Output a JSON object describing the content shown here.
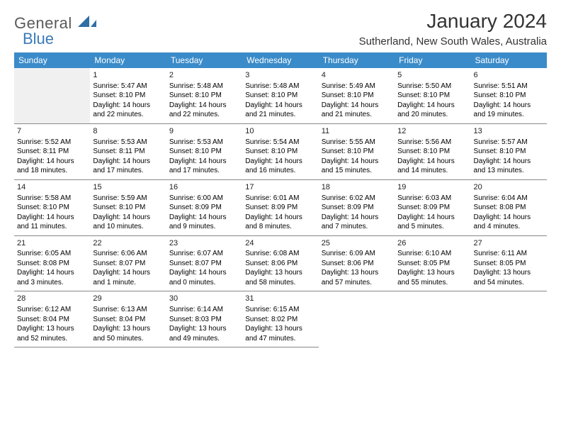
{
  "logo": {
    "word1": "General",
    "word2": "Blue"
  },
  "title": "January 2024",
  "location": "Sutherland, New South Wales, Australia",
  "colors": {
    "header_bg": "#3a8bc9",
    "header_text": "#ffffff",
    "logo_gray": "#5a5a5a",
    "logo_blue": "#3a7ab8",
    "rule": "#888888",
    "empty_bg": "#f0f0f0"
  },
  "day_names": [
    "Sunday",
    "Monday",
    "Tuesday",
    "Wednesday",
    "Thursday",
    "Friday",
    "Saturday"
  ],
  "weeks": [
    [
      {
        "empty": true
      },
      {
        "num": "1",
        "sunrise": "Sunrise: 5:47 AM",
        "sunset": "Sunset: 8:10 PM",
        "dl1": "Daylight: 14 hours",
        "dl2": "and 22 minutes."
      },
      {
        "num": "2",
        "sunrise": "Sunrise: 5:48 AM",
        "sunset": "Sunset: 8:10 PM",
        "dl1": "Daylight: 14 hours",
        "dl2": "and 22 minutes."
      },
      {
        "num": "3",
        "sunrise": "Sunrise: 5:48 AM",
        "sunset": "Sunset: 8:10 PM",
        "dl1": "Daylight: 14 hours",
        "dl2": "and 21 minutes."
      },
      {
        "num": "4",
        "sunrise": "Sunrise: 5:49 AM",
        "sunset": "Sunset: 8:10 PM",
        "dl1": "Daylight: 14 hours",
        "dl2": "and 21 minutes."
      },
      {
        "num": "5",
        "sunrise": "Sunrise: 5:50 AM",
        "sunset": "Sunset: 8:10 PM",
        "dl1": "Daylight: 14 hours",
        "dl2": "and 20 minutes."
      },
      {
        "num": "6",
        "sunrise": "Sunrise: 5:51 AM",
        "sunset": "Sunset: 8:10 PM",
        "dl1": "Daylight: 14 hours",
        "dl2": "and 19 minutes."
      }
    ],
    [
      {
        "num": "7",
        "sunrise": "Sunrise: 5:52 AM",
        "sunset": "Sunset: 8:11 PM",
        "dl1": "Daylight: 14 hours",
        "dl2": "and 18 minutes."
      },
      {
        "num": "8",
        "sunrise": "Sunrise: 5:53 AM",
        "sunset": "Sunset: 8:11 PM",
        "dl1": "Daylight: 14 hours",
        "dl2": "and 17 minutes."
      },
      {
        "num": "9",
        "sunrise": "Sunrise: 5:53 AM",
        "sunset": "Sunset: 8:10 PM",
        "dl1": "Daylight: 14 hours",
        "dl2": "and 17 minutes."
      },
      {
        "num": "10",
        "sunrise": "Sunrise: 5:54 AM",
        "sunset": "Sunset: 8:10 PM",
        "dl1": "Daylight: 14 hours",
        "dl2": "and 16 minutes."
      },
      {
        "num": "11",
        "sunrise": "Sunrise: 5:55 AM",
        "sunset": "Sunset: 8:10 PM",
        "dl1": "Daylight: 14 hours",
        "dl2": "and 15 minutes."
      },
      {
        "num": "12",
        "sunrise": "Sunrise: 5:56 AM",
        "sunset": "Sunset: 8:10 PM",
        "dl1": "Daylight: 14 hours",
        "dl2": "and 14 minutes."
      },
      {
        "num": "13",
        "sunrise": "Sunrise: 5:57 AM",
        "sunset": "Sunset: 8:10 PM",
        "dl1": "Daylight: 14 hours",
        "dl2": "and 13 minutes."
      }
    ],
    [
      {
        "num": "14",
        "sunrise": "Sunrise: 5:58 AM",
        "sunset": "Sunset: 8:10 PM",
        "dl1": "Daylight: 14 hours",
        "dl2": "and 11 minutes."
      },
      {
        "num": "15",
        "sunrise": "Sunrise: 5:59 AM",
        "sunset": "Sunset: 8:10 PM",
        "dl1": "Daylight: 14 hours",
        "dl2": "and 10 minutes."
      },
      {
        "num": "16",
        "sunrise": "Sunrise: 6:00 AM",
        "sunset": "Sunset: 8:09 PM",
        "dl1": "Daylight: 14 hours",
        "dl2": "and 9 minutes."
      },
      {
        "num": "17",
        "sunrise": "Sunrise: 6:01 AM",
        "sunset": "Sunset: 8:09 PM",
        "dl1": "Daylight: 14 hours",
        "dl2": "and 8 minutes."
      },
      {
        "num": "18",
        "sunrise": "Sunrise: 6:02 AM",
        "sunset": "Sunset: 8:09 PM",
        "dl1": "Daylight: 14 hours",
        "dl2": "and 7 minutes."
      },
      {
        "num": "19",
        "sunrise": "Sunrise: 6:03 AM",
        "sunset": "Sunset: 8:09 PM",
        "dl1": "Daylight: 14 hours",
        "dl2": "and 5 minutes."
      },
      {
        "num": "20",
        "sunrise": "Sunrise: 6:04 AM",
        "sunset": "Sunset: 8:08 PM",
        "dl1": "Daylight: 14 hours",
        "dl2": "and 4 minutes."
      }
    ],
    [
      {
        "num": "21",
        "sunrise": "Sunrise: 6:05 AM",
        "sunset": "Sunset: 8:08 PM",
        "dl1": "Daylight: 14 hours",
        "dl2": "and 3 minutes."
      },
      {
        "num": "22",
        "sunrise": "Sunrise: 6:06 AM",
        "sunset": "Sunset: 8:07 PM",
        "dl1": "Daylight: 14 hours",
        "dl2": "and 1 minute."
      },
      {
        "num": "23",
        "sunrise": "Sunrise: 6:07 AM",
        "sunset": "Sunset: 8:07 PM",
        "dl1": "Daylight: 14 hours",
        "dl2": "and 0 minutes."
      },
      {
        "num": "24",
        "sunrise": "Sunrise: 6:08 AM",
        "sunset": "Sunset: 8:06 PM",
        "dl1": "Daylight: 13 hours",
        "dl2": "and 58 minutes."
      },
      {
        "num": "25",
        "sunrise": "Sunrise: 6:09 AM",
        "sunset": "Sunset: 8:06 PM",
        "dl1": "Daylight: 13 hours",
        "dl2": "and 57 minutes."
      },
      {
        "num": "26",
        "sunrise": "Sunrise: 6:10 AM",
        "sunset": "Sunset: 8:05 PM",
        "dl1": "Daylight: 13 hours",
        "dl2": "and 55 minutes."
      },
      {
        "num": "27",
        "sunrise": "Sunrise: 6:11 AM",
        "sunset": "Sunset: 8:05 PM",
        "dl1": "Daylight: 13 hours",
        "dl2": "and 54 minutes."
      }
    ],
    [
      {
        "num": "28",
        "sunrise": "Sunrise: 6:12 AM",
        "sunset": "Sunset: 8:04 PM",
        "dl1": "Daylight: 13 hours",
        "dl2": "and 52 minutes."
      },
      {
        "num": "29",
        "sunrise": "Sunrise: 6:13 AM",
        "sunset": "Sunset: 8:04 PM",
        "dl1": "Daylight: 13 hours",
        "dl2": "and 50 minutes."
      },
      {
        "num": "30",
        "sunrise": "Sunrise: 6:14 AM",
        "sunset": "Sunset: 8:03 PM",
        "dl1": "Daylight: 13 hours",
        "dl2": "and 49 minutes."
      },
      {
        "num": "31",
        "sunrise": "Sunrise: 6:15 AM",
        "sunset": "Sunset: 8:02 PM",
        "dl1": "Daylight: 13 hours",
        "dl2": "and 47 minutes."
      },
      {
        "trailing": true
      },
      {
        "trailing": true
      },
      {
        "trailing": true
      }
    ]
  ]
}
